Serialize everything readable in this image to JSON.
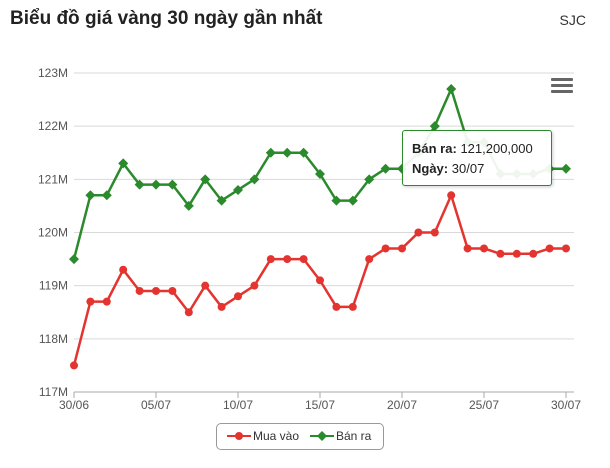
{
  "header": {
    "title": "Biểu đồ giá vàng 30 ngày gần nhất",
    "source": "SJC"
  },
  "menu_icon": "hamburger-menu-icon",
  "tooltip": {
    "label": "Bán ra",
    "value": "121,200,000",
    "date_label": "Ngày",
    "date": "30/07"
  },
  "colors": {
    "buy": "#e3342f",
    "sell": "#2b8a2b",
    "grid": "#d9d9d9"
  },
  "chart_data": {
    "type": "line",
    "x": [
      "30/06",
      "01/07",
      "02/07",
      "03/07",
      "04/07",
      "05/07",
      "06/07",
      "07/07",
      "08/07",
      "09/07",
      "10/07",
      "11/07",
      "12/07",
      "13/07",
      "14/07",
      "15/07",
      "16/07",
      "17/07",
      "18/07",
      "19/07",
      "20/07",
      "21/07",
      "22/07",
      "23/07",
      "24/07",
      "25/07",
      "26/07",
      "27/07",
      "28/07",
      "29/07",
      "30/07"
    ],
    "x_tick_labels": [
      "30/06",
      "05/07",
      "10/07",
      "15/07",
      "20/07",
      "25/07",
      "30/07"
    ],
    "y_tick_labels": [
      "117M",
      "118M",
      "119M",
      "120M",
      "121M",
      "122M",
      "123M"
    ],
    "ylim": [
      117,
      123
    ],
    "y_unit": "M",
    "series": [
      {
        "name": "Mua vào",
        "color": "#e3342f",
        "marker": "circle",
        "values": [
          117.5,
          118.7,
          118.7,
          119.3,
          118.9,
          118.9,
          118.9,
          118.5,
          119.0,
          118.6,
          118.8,
          119.0,
          119.5,
          119.5,
          119.5,
          119.1,
          118.6,
          118.6,
          119.5,
          119.7,
          119.7,
          120.0,
          120.0,
          120.7,
          119.7,
          119.7,
          119.6,
          119.6,
          119.6,
          119.7,
          119.7
        ]
      },
      {
        "name": "Bán ra",
        "color": "#2b8a2b",
        "marker": "diamond",
        "values": [
          119.5,
          120.7,
          120.7,
          121.3,
          120.9,
          120.9,
          120.9,
          120.5,
          121.0,
          120.6,
          120.8,
          121.0,
          121.5,
          121.5,
          121.5,
          121.1,
          120.6,
          120.6,
          121.0,
          121.2,
          121.2,
          121.5,
          122.0,
          122.7,
          121.7,
          121.7,
          121.1,
          121.1,
          121.1,
          121.2,
          121.2
        ]
      }
    ],
    "legend": "bottom-center",
    "grid": true
  }
}
